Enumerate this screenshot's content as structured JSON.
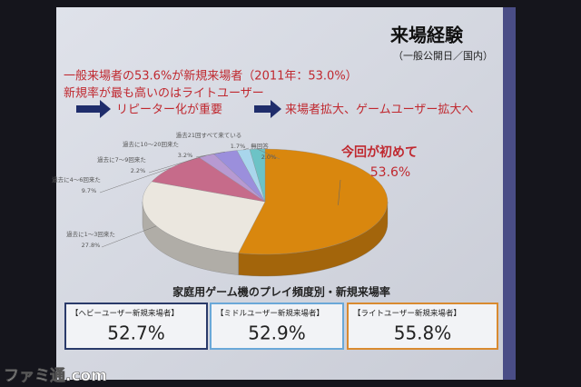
{
  "chart_data": {
    "type": "pie",
    "categories": [
      "今回が初めて",
      "過去に1～3回来た",
      "過去に4～6回来た",
      "過去に7～9回来た",
      "過去に10～20回来た",
      "過去21回すべて来ている",
      "無回答"
    ],
    "values": [
      53.6,
      27.8,
      9.7,
      2.2,
      3.2,
      1.7,
      2.0
    ],
    "value_labels": [
      "53.6%",
      "27.8%",
      "9.7%",
      "2.2%",
      "3.2%",
      "1.7%",
      "2.0%"
    ],
    "colors": [
      "#d9870e",
      "#ebe7df",
      "#c66b8a",
      "#b79ad2",
      "#9b8fdc",
      "#a9d6ec",
      "#6cc3c6"
    ]
  },
  "slide": {
    "title": "来場経験",
    "subtitle": "（一般公開日／国内）",
    "notes": [
      "一般来場者の53.6%が新規来場者（2011年：53.0%）",
      "新規率が最も高いのはライトユーザー"
    ],
    "arrows": [
      "リピーター化が重要",
      "来場者拡大、ゲームユーザー拡大へ"
    ],
    "section_title": "家庭用ゲーム機のプレイ頻度別・新規来場率",
    "boxes": [
      {
        "label": "【ヘビーユーザー新規来場者】",
        "value": "52.7%"
      },
      {
        "label": "【ミドルユーザー新規来場者】",
        "value": "52.9%"
      },
      {
        "label": "【ライトユーザー新規来場者】",
        "value": "55.8%"
      }
    ]
  },
  "watermark": "ファミ通.com"
}
